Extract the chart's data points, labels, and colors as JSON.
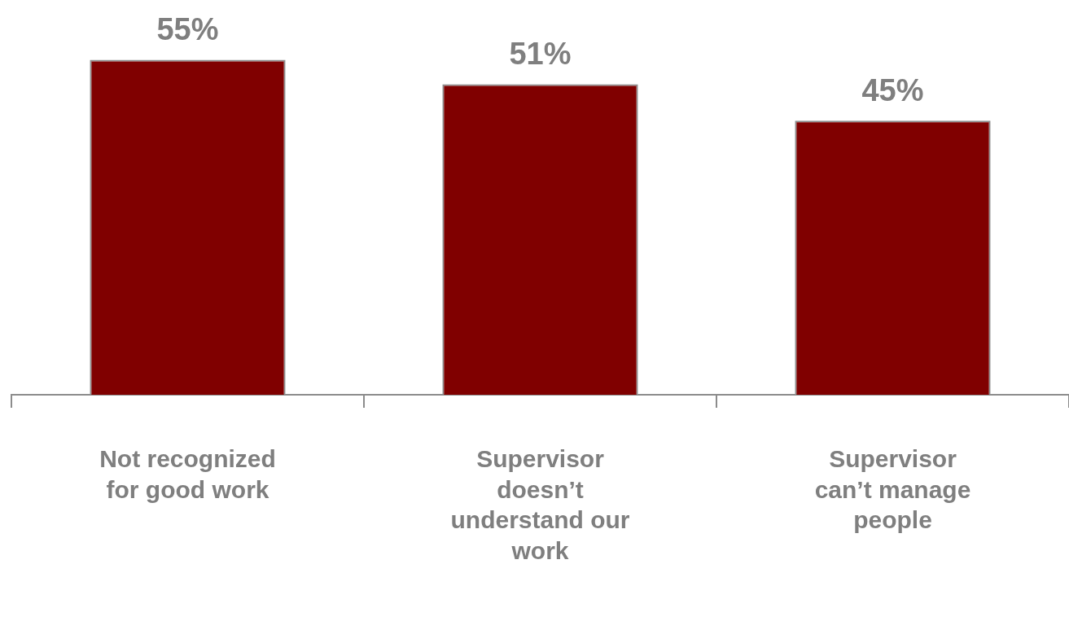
{
  "chart_data": {
    "type": "bar",
    "categories": [
      "Not recognized for good work",
      "Supervisor doesn’t understand our work",
      "Supervisor can’t manage people"
    ],
    "values": [
      55,
      51,
      45
    ],
    "value_labels": [
      "55%",
      "51%",
      "45%"
    ],
    "color": "#800000"
  }
}
